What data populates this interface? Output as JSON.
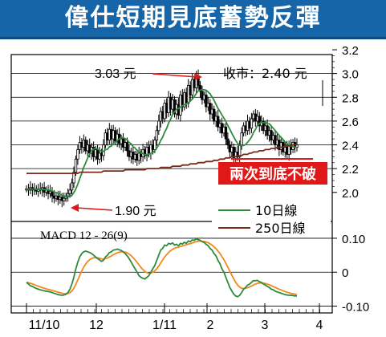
{
  "title": "偉仕短期見底蓄勢反彈",
  "colors": {
    "title_bg": "#1565a8",
    "candle": "#000000",
    "ma10": "#2e8b3e",
    "ma250": "#7a2a1a",
    "macd": "#2e8b3e",
    "signal": "#f08a1c",
    "alert_box": "#e01818",
    "arrow": "#e01818"
  },
  "chart_data": [
    {
      "type": "candlestick",
      "title": "",
      "ylim": [
        1.85,
        3.2
      ],
      "y_ticks": [
        2.0,
        2.2,
        2.4,
        2.6,
        2.8,
        3.0,
        3.2
      ],
      "y_tick_labels": [
        "2.0",
        "2.2",
        "2.4",
        "2.6",
        "2.8",
        "3.0",
        "3.2"
      ],
      "grid": true,
      "x_ticks": [
        "11/10",
        "12",
        "1/11",
        "2",
        "3",
        "4"
      ],
      "price_close": [
        2.03,
        2.02,
        2.04,
        2.02,
        2.03,
        2.01,
        2.03,
        2.02,
        2.04,
        2.0,
        2.02,
        1.99,
        2.01,
        1.97,
        1.95,
        1.97,
        1.94,
        1.96,
        1.93,
        1.95,
        1.97,
        1.99,
        2.02,
        2.08,
        2.17,
        2.28,
        2.36,
        2.42,
        2.38,
        2.44,
        2.35,
        2.4,
        2.33,
        2.38,
        2.3,
        2.36,
        2.28,
        2.33,
        2.31,
        2.4,
        2.5,
        2.44,
        2.53,
        2.45,
        2.52,
        2.43,
        2.49,
        2.41,
        2.45,
        2.38,
        2.42,
        2.35,
        2.3,
        2.34,
        2.28,
        2.32,
        2.27,
        2.33,
        2.3,
        2.36,
        2.31,
        2.38,
        2.33,
        2.4,
        2.36,
        2.44,
        2.52,
        2.6,
        2.68,
        2.62,
        2.75,
        2.67,
        2.8,
        2.7,
        2.78,
        2.66,
        2.74,
        2.65,
        2.82,
        2.72,
        2.84,
        2.75,
        2.9,
        2.82,
        2.95,
        2.88,
        2.98,
        2.9,
        2.85,
        2.78,
        2.82,
        2.72,
        2.75,
        2.66,
        2.7,
        2.6,
        2.64,
        2.55,
        2.58,
        2.5,
        2.55,
        2.45,
        2.4,
        2.34,
        2.38,
        2.28,
        2.34,
        2.3,
        2.4,
        2.5,
        2.56,
        2.52,
        2.6,
        2.54,
        2.62,
        2.66,
        2.6,
        2.64,
        2.56,
        2.6,
        2.52,
        2.56,
        2.48,
        2.52,
        2.44,
        2.48,
        2.4,
        2.44,
        2.36,
        2.42,
        2.34,
        2.38,
        2.32,
        2.4,
        2.36,
        2.42,
        2.38,
        2.4
      ],
      "ma250": [
        2.16,
        2.16,
        2.16,
        2.16,
        2.16,
        2.16,
        2.16,
        2.16,
        2.16,
        2.16,
        2.16,
        2.16,
        2.16,
        2.16,
        2.16,
        2.16,
        2.16,
        2.16,
        2.16,
        2.16,
        2.16,
        2.16,
        2.16,
        2.16,
        2.16,
        2.16,
        2.16,
        2.17,
        2.17,
        2.17,
        2.17,
        2.17,
        2.17,
        2.17,
        2.17,
        2.17,
        2.17,
        2.17,
        2.17,
        2.18,
        2.18,
        2.18,
        2.18,
        2.18,
        2.18,
        2.18,
        2.18,
        2.18,
        2.18,
        2.18,
        2.19,
        2.19,
        2.19,
        2.19,
        2.19,
        2.19,
        2.19,
        2.19,
        2.19,
        2.19,
        2.19,
        2.2,
        2.2,
        2.2,
        2.2,
        2.2,
        2.2,
        2.2,
        2.21,
        2.21,
        2.21,
        2.21,
        2.21,
        2.21,
        2.22,
        2.22,
        2.22,
        2.22,
        2.22,
        2.23,
        2.23,
        2.23,
        2.23,
        2.24,
        2.24,
        2.24,
        2.24,
        2.25,
        2.25,
        2.25,
        2.25,
        2.26,
        2.26,
        2.26,
        2.26,
        2.27,
        2.27,
        2.27,
        2.28,
        2.28,
        2.28,
        2.29,
        2.29,
        2.29,
        2.3,
        2.3,
        2.3,
        2.31,
        2.31,
        2.31,
        2.32,
        2.32,
        2.32,
        2.33,
        2.33,
        2.34,
        2.34,
        2.34,
        2.35,
        2.35,
        2.35,
        2.36,
        2.36,
        2.36,
        2.37,
        2.37,
        2.37,
        2.38,
        2.38,
        2.38,
        2.38,
        2.39,
        2.39,
        2.39,
        2.39,
        2.4,
        2.4,
        2.4
      ],
      "macd": [
        -0.03,
        -0.035,
        -0.04,
        -0.042,
        -0.045,
        -0.048,
        -0.05,
        -0.052,
        -0.053,
        -0.055,
        -0.056,
        -0.057,
        -0.058,
        -0.06,
        -0.062,
        -0.064,
        -0.066,
        -0.067,
        -0.068,
        -0.067,
        -0.065,
        -0.06,
        -0.05,
        -0.035,
        -0.015,
        0.01,
        0.03,
        0.045,
        0.055,
        0.06,
        0.062,
        0.06,
        0.058,
        0.055,
        0.05,
        0.045,
        0.04,
        0.036,
        0.032,
        0.035,
        0.045,
        0.05,
        0.058,
        0.06,
        0.065,
        0.066,
        0.068,
        0.066,
        0.064,
        0.06,
        0.055,
        0.048,
        0.04,
        0.03,
        0.02,
        0.01,
        0.0,
        -0.01,
        -0.015,
        -0.018,
        -0.02,
        -0.015,
        -0.01,
        0.0,
        0.01,
        0.02,
        0.035,
        0.05,
        0.065,
        0.07,
        0.08,
        0.078,
        0.085,
        0.083,
        0.086,
        0.08,
        0.082,
        0.078,
        0.085,
        0.083,
        0.088,
        0.085,
        0.092,
        0.09,
        0.095,
        0.094,
        0.098,
        0.096,
        0.094,
        0.09,
        0.088,
        0.082,
        0.078,
        0.07,
        0.065,
        0.055,
        0.048,
        0.035,
        0.025,
        0.01,
        0.0,
        -0.015,
        -0.03,
        -0.045,
        -0.055,
        -0.065,
        -0.07,
        -0.072,
        -0.068,
        -0.06,
        -0.05,
        -0.045,
        -0.038,
        -0.035,
        -0.03,
        -0.025,
        -0.025,
        -0.024,
        -0.028,
        -0.03,
        -0.035,
        -0.038,
        -0.042,
        -0.045,
        -0.05,
        -0.052,
        -0.056,
        -0.058,
        -0.06,
        -0.062,
        -0.064,
        -0.066,
        -0.067,
        -0.068,
        -0.068,
        -0.069,
        -0.07,
        -0.07
      ],
      "annotations": {
        "high": "3.03 元",
        "low": "1.90 元",
        "close": "收市：2.40 元",
        "alert": "兩次到底不破"
      },
      "legend": [
        {
          "name": "10日線",
          "color": "#2e8b3e"
        },
        {
          "name": "250日線",
          "color": "#7a2a1a"
        }
      ]
    },
    {
      "type": "line",
      "title": "MACD 12 - 26(9)",
      "ylim": [
        -0.12,
        0.14
      ],
      "y_ticks": [
        0.1,
        0.0,
        -0.1
      ],
      "y_tick_labels": [
        "0.10",
        "0",
        "-0.10"
      ],
      "grid": true,
      "series": [
        {
          "color": "#2e8b3e"
        },
        {
          "color": "#f08a1c"
        }
      ]
    }
  ]
}
